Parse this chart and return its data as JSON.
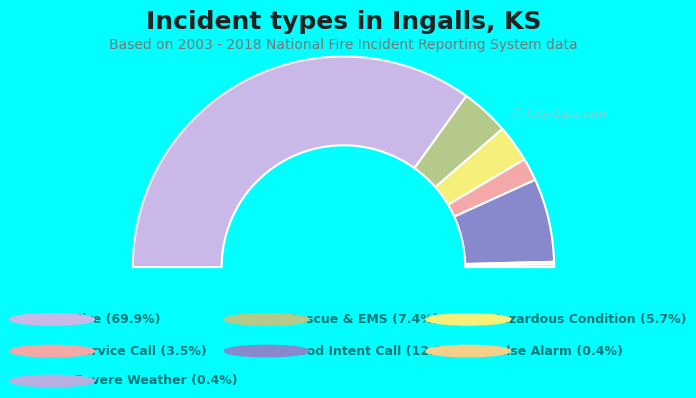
{
  "title": "Incident types in Ingalls, KS",
  "subtitle": "Based on 2003 - 2018 National Fire Incident Reporting System data",
  "background_color": "#00FFFF",
  "chart_bg_color": "#d4eed4",
  "segments": [
    {
      "label": "Fire",
      "pct": 69.9,
      "color": "#c9b8e8"
    },
    {
      "label": "Rescue & EMS",
      "pct": 7.4,
      "color": "#b5c98a"
    },
    {
      "label": "Hazardous Condition",
      "pct": 5.7,
      "color": "#f5f07a"
    },
    {
      "label": "Service Call",
      "pct": 3.5,
      "color": "#f5a8a8"
    },
    {
      "label": "Good Intent Call",
      "pct": 12.8,
      "color": "#8888cc"
    },
    {
      "label": "False Alarm",
      "pct": 0.4,
      "color": "#f5d08a"
    },
    {
      "label": "Severe Weather",
      "pct": 0.4,
      "color": "#b8b0e0"
    }
  ],
  "legend_rows": [
    [
      {
        "label": "Fire (69.9%)",
        "color": "#c9b8e8"
      },
      {
        "label": "Rescue & EMS (7.4%)",
        "color": "#b5c98a"
      },
      {
        "label": "Hazardous Condition (5.7%)",
        "color": "#f5f07a"
      }
    ],
    [
      {
        "label": "Service Call (3.5%)",
        "color": "#f5a8a8"
      },
      {
        "label": "Good Intent Call (12.8%)",
        "color": "#8888cc"
      },
      {
        "label": "False Alarm (0.4%)",
        "color": "#f5d08a"
      }
    ],
    [
      {
        "label": "Severe Weather (0.4%)",
        "color": "#b8b0e0"
      }
    ]
  ],
  "title_fontsize": 18,
  "subtitle_fontsize": 10,
  "legend_fontsize": 9,
  "outer_r": 1.28,
  "inner_r": 0.74
}
